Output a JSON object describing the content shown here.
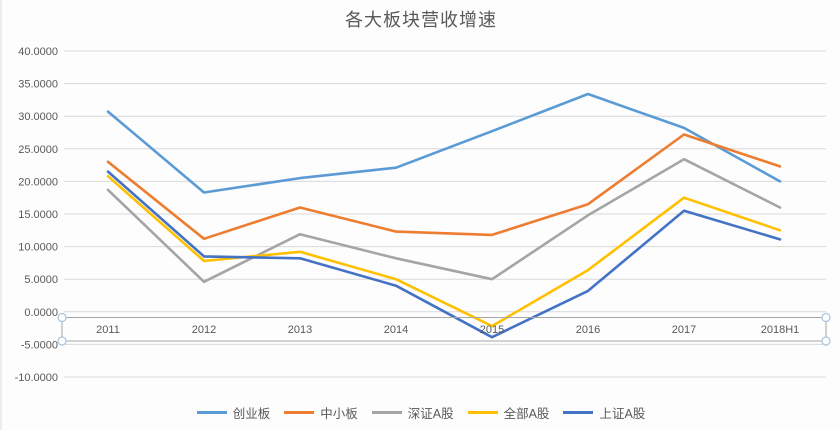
{
  "chart_data": {
    "type": "line",
    "title": "各大板块营收增速",
    "categories": [
      "2011",
      "2012",
      "2013",
      "2014",
      "2015",
      "2016",
      "2017",
      "2018H1"
    ],
    "series": [
      {
        "name": "创业板",
        "color": "#5B9BD5",
        "values": [
          30.7,
          18.3,
          20.5,
          22.1,
          27.7,
          33.4,
          28.2,
          20.0
        ]
      },
      {
        "name": "中小板",
        "color": "#ED7D31",
        "values": [
          23.0,
          11.2,
          16.0,
          12.3,
          11.8,
          16.5,
          27.2,
          22.3
        ]
      },
      {
        "name": "深证A股",
        "color": "#A5A5A5",
        "values": [
          18.7,
          4.6,
          11.9,
          8.2,
          5.0,
          14.8,
          23.4,
          16.0
        ]
      },
      {
        "name": "全部A股",
        "color": "#FFC000",
        "values": [
          20.8,
          7.8,
          9.2,
          5.0,
          -2.2,
          6.4,
          17.5,
          12.5
        ]
      },
      {
        "name": "上证A股",
        "color": "#4472C4",
        "values": [
          21.5,
          8.5,
          8.2,
          4.0,
          -3.9,
          3.2,
          15.5,
          11.1
        ]
      }
    ],
    "xlabel": "",
    "ylabel": "",
    "ylim": [
      -10,
      40
    ],
    "y_tick_step": 5,
    "y_tick_labels": [
      "40.0000",
      "35.0000",
      "30.0000",
      "25.0000",
      "20.0000",
      "15.0000",
      "10.0000",
      "5.0000",
      "0.0000",
      "-5.0000",
      "-10.0000"
    ],
    "grid": true,
    "legend_position": "bottom",
    "x_axis_selected": true
  },
  "colors": {
    "gridline": "#d9d9d9",
    "axis_text": "#595959",
    "title_text": "#595959",
    "axis_band_stroke": "#a6a6a6",
    "handle_stroke": "#a9c4dd",
    "handle_fill": "#ffffff",
    "background": "#fdfdfd"
  }
}
